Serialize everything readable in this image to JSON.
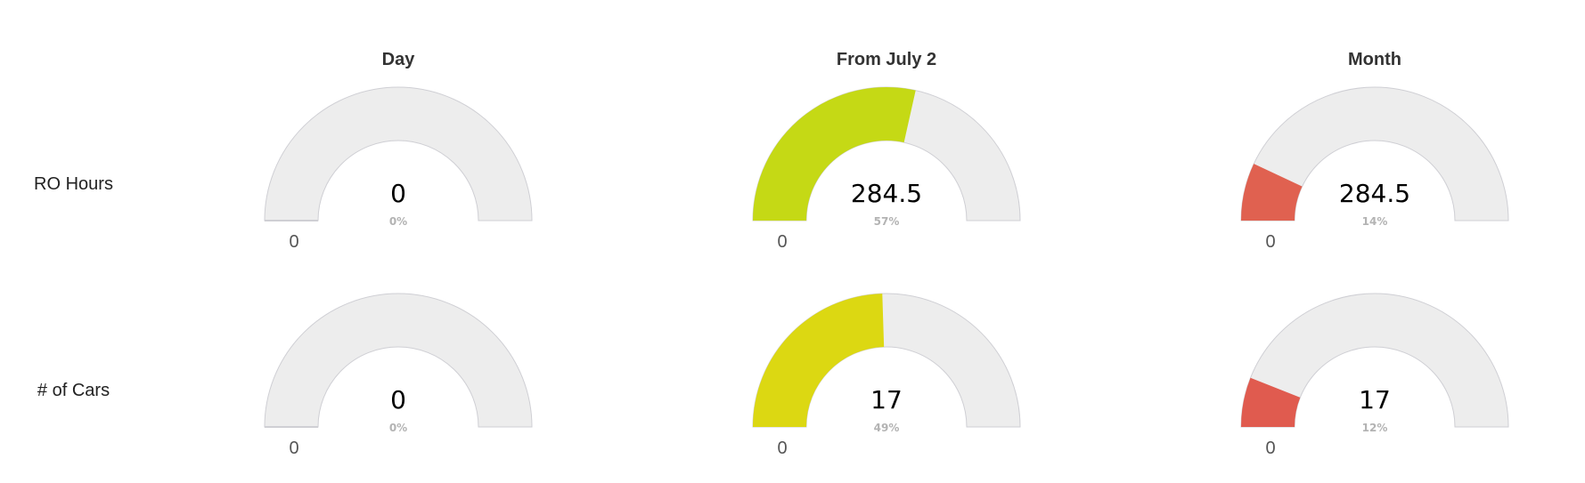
{
  "chart_data": [
    {
      "type": "gauge",
      "row_label": "RO Hours",
      "column_label": "Day",
      "value": 0,
      "value_label": "0",
      "percent": 0,
      "percent_label": "0%",
      "min_label": "0",
      "fill_color": "#cfcfcf"
    },
    {
      "type": "gauge",
      "row_label": "RO Hours",
      "column_label": "From July 2",
      "value": 284.5,
      "value_label": "284.5",
      "percent": 57,
      "percent_label": "57%",
      "min_label": "0",
      "fill_color": "#c5d915"
    },
    {
      "type": "gauge",
      "row_label": "RO Hours",
      "column_label": "Month",
      "value": 284.5,
      "value_label": "284.5",
      "percent": 14,
      "percent_label": "14%",
      "min_label": "0",
      "fill_color": "#e06150"
    },
    {
      "type": "gauge",
      "row_label": "# of Cars",
      "column_label": "Day",
      "value": 0,
      "value_label": "0",
      "percent": 0,
      "percent_label": "0%",
      "min_label": "0",
      "fill_color": "#cfcfcf"
    },
    {
      "type": "gauge",
      "row_label": "# of Cars",
      "column_label": "From July 2",
      "value": 17,
      "value_label": "17",
      "percent": 49,
      "percent_label": "49%",
      "min_label": "0",
      "fill_color": "#dcd812"
    },
    {
      "type": "gauge",
      "row_label": "# of Cars",
      "column_label": "Month",
      "value": 17,
      "value_label": "17",
      "percent": 12,
      "percent_label": "12%",
      "min_label": "0",
      "fill_color": "#e05b4f"
    }
  ],
  "columns": [
    "Day",
    "From July 2",
    "Month"
  ],
  "rows": [
    "RO Hours",
    "# of Cars"
  ],
  "colors": {
    "track": "#ededed",
    "track_border": "#cfcfd4"
  }
}
